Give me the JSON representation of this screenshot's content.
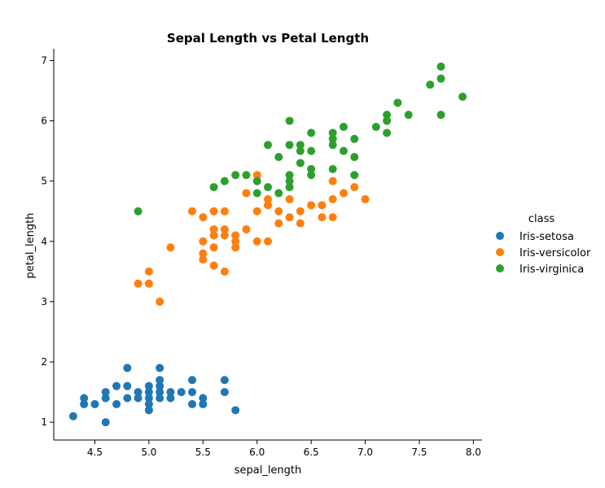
{
  "chart_data": {
    "type": "scatter",
    "title": "Sepal Length vs Petal Length",
    "xlabel": "sepal_length",
    "ylabel": "petal_length",
    "xlim": [
      4.12,
      8.08
    ],
    "ylim": [
      0.705,
      7.195
    ],
    "xticks": [
      "4.5",
      "5.0",
      "5.5",
      "6.0",
      "6.5",
      "7.0",
      "7.5",
      "8.0"
    ],
    "yticks": [
      "1",
      "2",
      "3",
      "4",
      "5",
      "6",
      "7"
    ],
    "legend_title": "class",
    "legend_position": "right",
    "grid": false,
    "series": [
      {
        "name": "Iris-setosa",
        "color": "#1f77b4",
        "points": [
          [
            4.3,
            1.1
          ],
          [
            4.4,
            1.3
          ],
          [
            4.4,
            1.4
          ],
          [
            4.5,
            1.3
          ],
          [
            4.6,
            1.0
          ],
          [
            4.6,
            1.4
          ],
          [
            4.6,
            1.5
          ],
          [
            4.7,
            1.3
          ],
          [
            4.7,
            1.6
          ],
          [
            4.8,
            1.4
          ],
          [
            4.8,
            1.6
          ],
          [
            4.8,
            1.9
          ],
          [
            4.9,
            1.4
          ],
          [
            4.9,
            1.5
          ],
          [
            5.0,
            1.2
          ],
          [
            5.0,
            1.3
          ],
          [
            5.0,
            1.4
          ],
          [
            5.0,
            1.5
          ],
          [
            5.0,
            1.6
          ],
          [
            5.1,
            1.4
          ],
          [
            5.1,
            1.5
          ],
          [
            5.1,
            1.6
          ],
          [
            5.1,
            1.7
          ],
          [
            5.1,
            1.9
          ],
          [
            5.2,
            1.4
          ],
          [
            5.2,
            1.5
          ],
          [
            5.3,
            1.5
          ],
          [
            5.4,
            1.3
          ],
          [
            5.4,
            1.5
          ],
          [
            5.4,
            1.7
          ],
          [
            5.5,
            1.3
          ],
          [
            5.5,
            1.4
          ],
          [
            5.7,
            1.5
          ],
          [
            5.7,
            1.7
          ],
          [
            5.8,
            1.2
          ]
        ]
      },
      {
        "name": "Iris-versicolor",
        "color": "#ff7f0e",
        "points": [
          [
            4.9,
            3.3
          ],
          [
            5.0,
            3.3
          ],
          [
            5.0,
            3.5
          ],
          [
            5.1,
            3.0
          ],
          [
            5.2,
            3.9
          ],
          [
            5.4,
            4.5
          ],
          [
            5.5,
            3.7
          ],
          [
            5.5,
            3.8
          ],
          [
            5.5,
            4.0
          ],
          [
            5.5,
            4.4
          ],
          [
            5.6,
            3.6
          ],
          [
            5.6,
            3.9
          ],
          [
            5.6,
            4.1
          ],
          [
            5.6,
            4.2
          ],
          [
            5.6,
            4.5
          ],
          [
            5.7,
            3.5
          ],
          [
            5.7,
            4.1
          ],
          [
            5.7,
            4.2
          ],
          [
            5.7,
            4.5
          ],
          [
            5.8,
            3.9
          ],
          [
            5.8,
            4.0
          ],
          [
            5.8,
            4.1
          ],
          [
            5.9,
            4.2
          ],
          [
            5.9,
            4.8
          ],
          [
            6.0,
            4.0
          ],
          [
            6.0,
            4.5
          ],
          [
            6.0,
            5.1
          ],
          [
            6.1,
            4.0
          ],
          [
            6.1,
            4.6
          ],
          [
            6.1,
            4.7
          ],
          [
            6.2,
            4.3
          ],
          [
            6.2,
            4.5
          ],
          [
            6.3,
            4.4
          ],
          [
            6.3,
            4.7
          ],
          [
            6.4,
            4.3
          ],
          [
            6.4,
            4.5
          ],
          [
            6.5,
            4.6
          ],
          [
            6.6,
            4.4
          ],
          [
            6.6,
            4.6
          ],
          [
            6.7,
            4.4
          ],
          [
            6.7,
            4.7
          ],
          [
            6.7,
            5.0
          ],
          [
            6.8,
            4.8
          ],
          [
            6.9,
            4.9
          ],
          [
            7.0,
            4.7
          ]
        ]
      },
      {
        "name": "Iris-virginica",
        "color": "#2ca02c",
        "points": [
          [
            4.9,
            4.5
          ],
          [
            5.6,
            4.9
          ],
          [
            5.7,
            5.0
          ],
          [
            5.8,
            5.1
          ],
          [
            5.9,
            5.1
          ],
          [
            6.0,
            4.8
          ],
          [
            6.0,
            5.0
          ],
          [
            6.1,
            4.9
          ],
          [
            6.1,
            5.6
          ],
          [
            6.2,
            4.8
          ],
          [
            6.2,
            5.4
          ],
          [
            6.3,
            4.9
          ],
          [
            6.3,
            5.0
          ],
          [
            6.3,
            5.1
          ],
          [
            6.3,
            5.6
          ],
          [
            6.3,
            6.0
          ],
          [
            6.4,
            5.3
          ],
          [
            6.4,
            5.5
          ],
          [
            6.4,
            5.6
          ],
          [
            6.5,
            5.1
          ],
          [
            6.5,
            5.2
          ],
          [
            6.5,
            5.5
          ],
          [
            6.5,
            5.8
          ],
          [
            6.7,
            5.2
          ],
          [
            6.7,
            5.6
          ],
          [
            6.7,
            5.7
          ],
          [
            6.7,
            5.8
          ],
          [
            6.8,
            5.5
          ],
          [
            6.8,
            5.9
          ],
          [
            6.9,
            5.1
          ],
          [
            6.9,
            5.4
          ],
          [
            6.9,
            5.7
          ],
          [
            7.1,
            5.9
          ],
          [
            7.2,
            5.8
          ],
          [
            7.2,
            6.0
          ],
          [
            7.2,
            6.1
          ],
          [
            7.3,
            6.3
          ],
          [
            7.4,
            6.1
          ],
          [
            7.6,
            6.6
          ],
          [
            7.7,
            6.1
          ],
          [
            7.7,
            6.7
          ],
          [
            7.7,
            6.9
          ],
          [
            7.9,
            6.4
          ]
        ]
      }
    ]
  }
}
